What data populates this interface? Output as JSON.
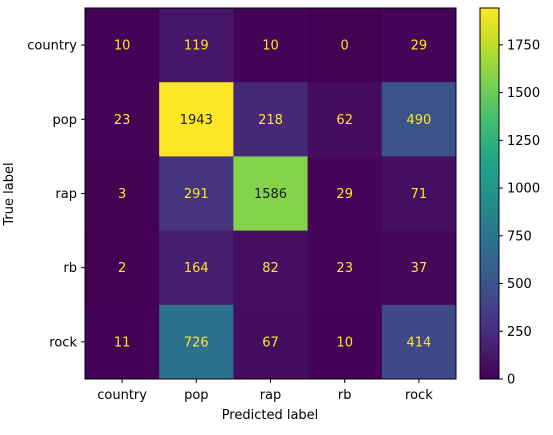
{
  "chart_data": {
    "type": "heatmap",
    "title": "",
    "xlabel": "Predicted label",
    "ylabel": "True label",
    "x_categories": [
      "country",
      "pop",
      "rap",
      "rb",
      "rock"
    ],
    "y_categories": [
      "country",
      "pop",
      "rap",
      "rb",
      "rock"
    ],
    "values": [
      [
        10,
        119,
        10,
        0,
        29
      ],
      [
        23,
        1943,
        218,
        62,
        490
      ],
      [
        3,
        291,
        1586,
        29,
        71
      ],
      [
        2,
        164,
        82,
        23,
        37
      ],
      [
        11,
        726,
        67,
        10,
        414
      ]
    ],
    "colormap": "viridis",
    "colorbar": {
      "min": 0,
      "max": 1943,
      "ticks": [
        0,
        250,
        500,
        750,
        1000,
        1250,
        1500,
        1750
      ]
    },
    "colors": {
      "light_text": "#fde725",
      "dark_text": "#440154"
    }
  }
}
